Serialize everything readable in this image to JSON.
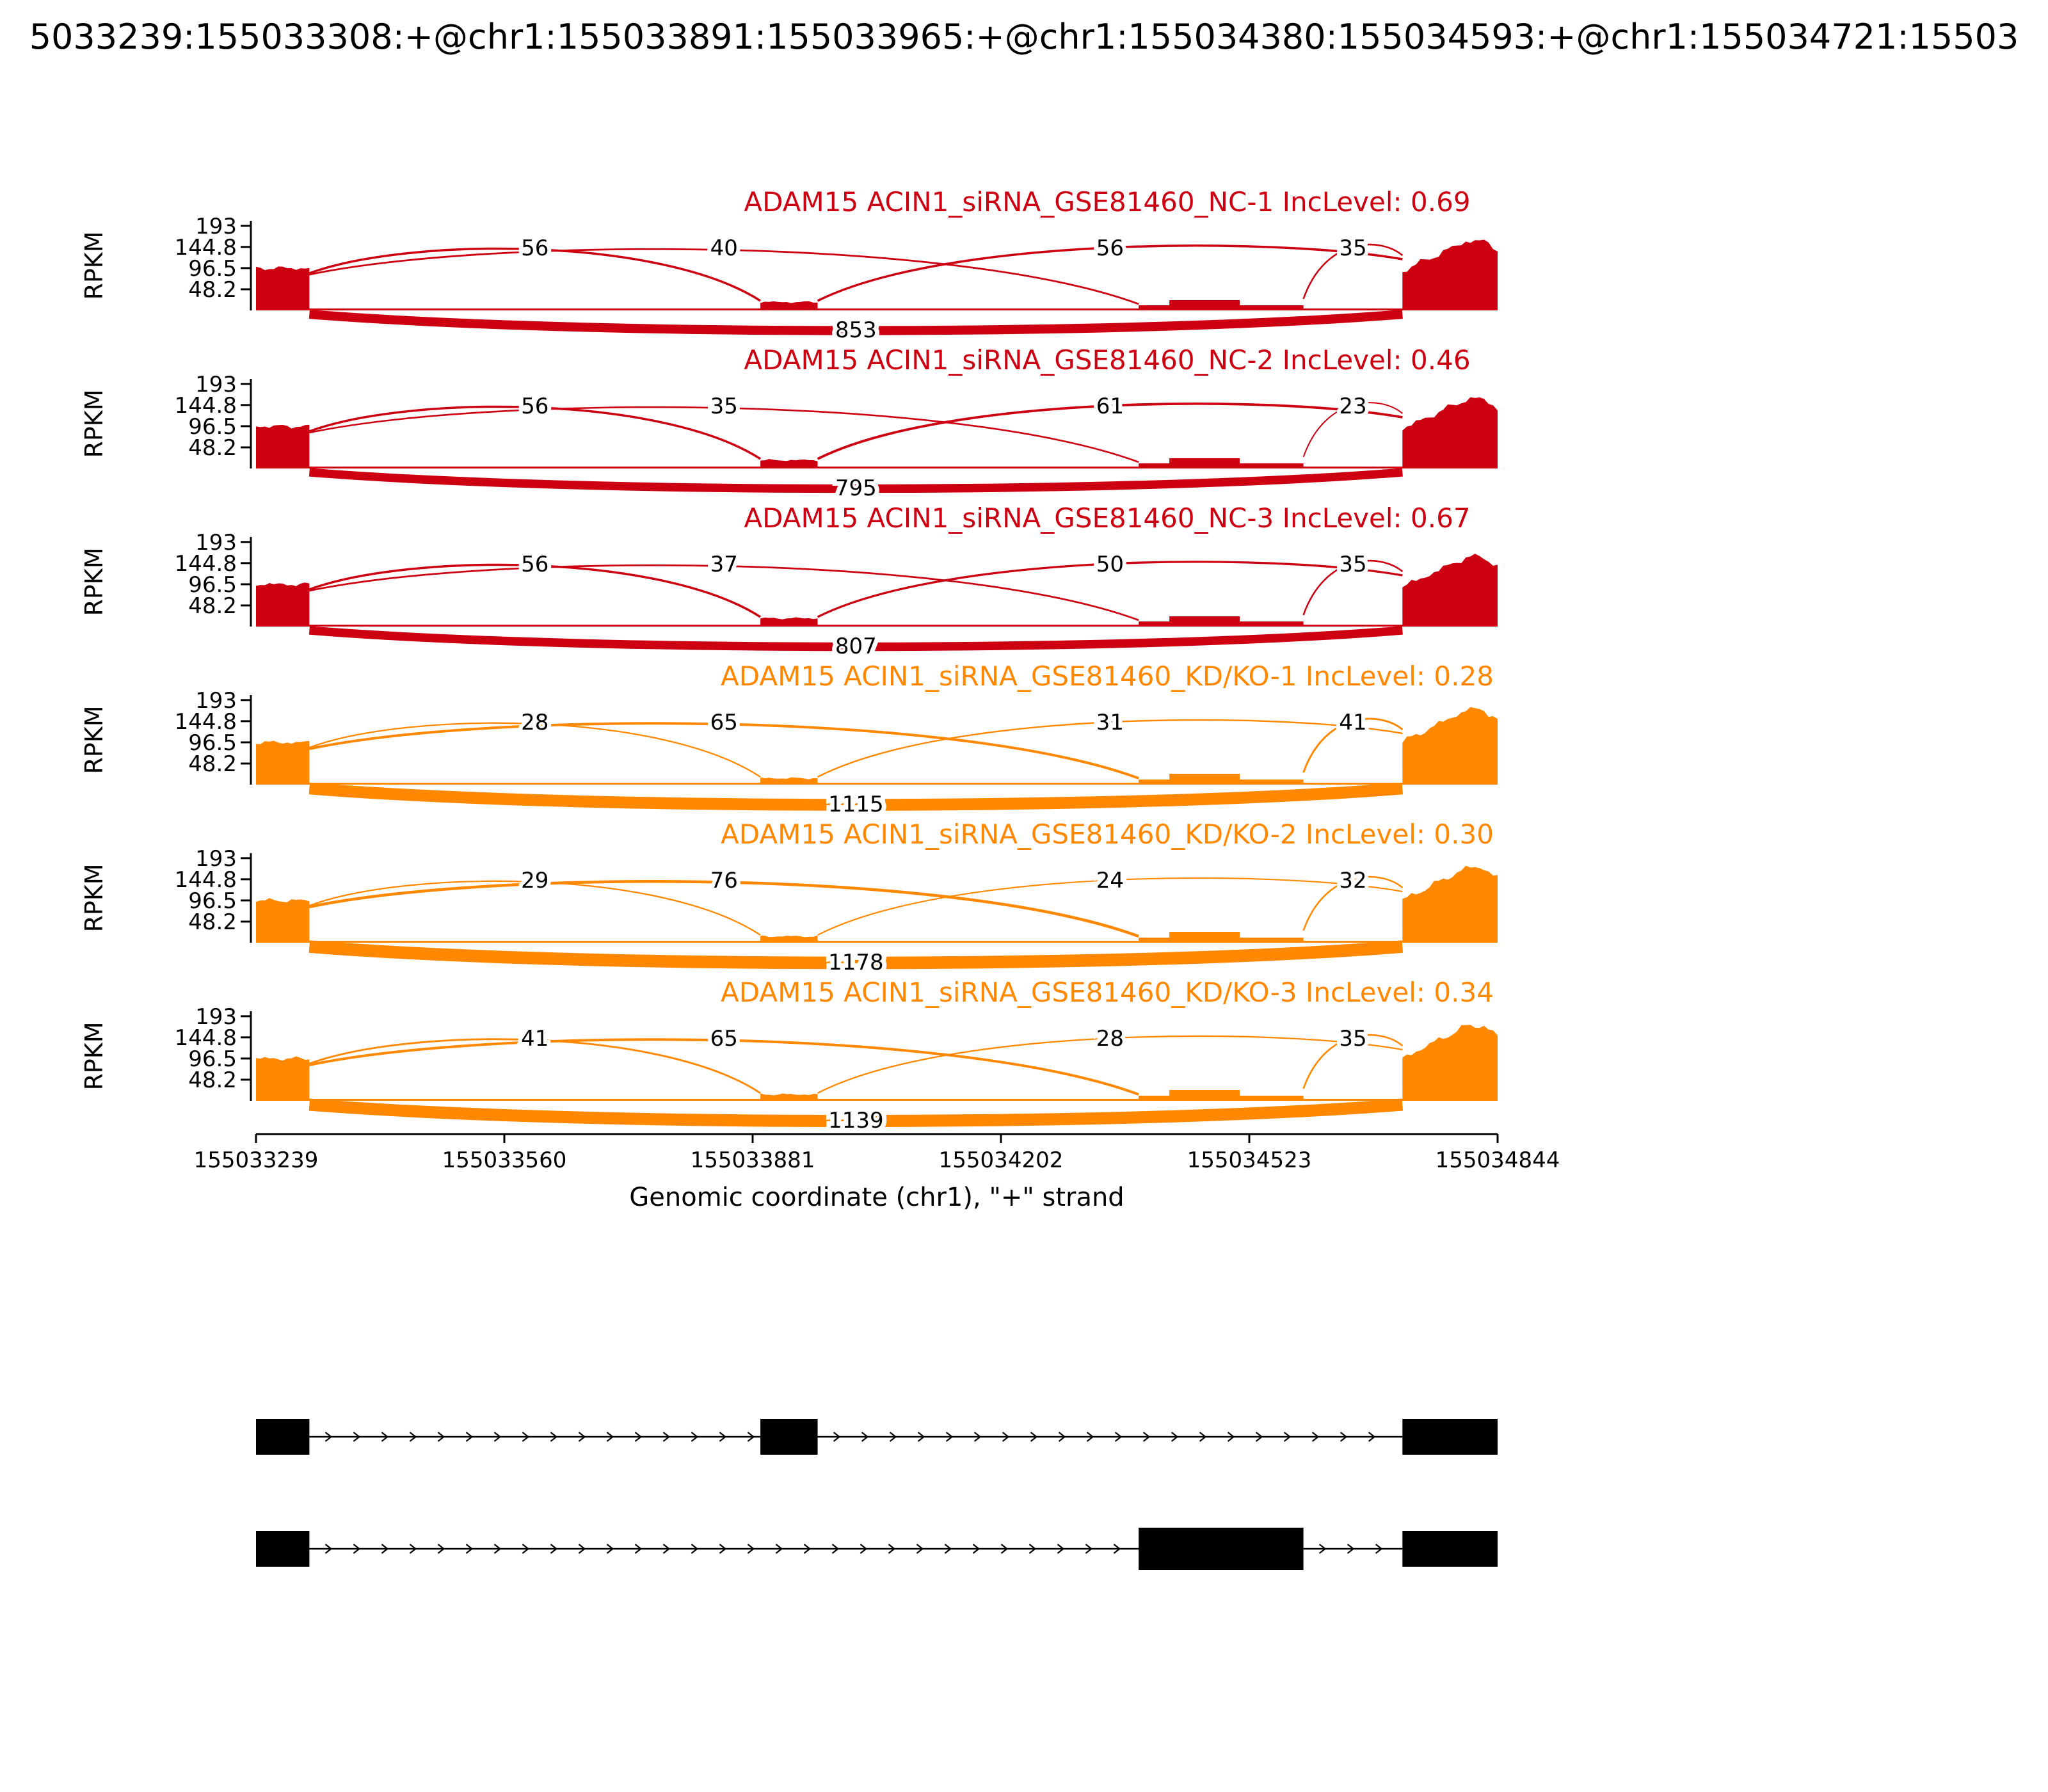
{
  "header": {
    "title": "5033239:155033308:+@chr1:155033891:155033965:+@chr1:155034380:155034593:+@chr1:155034721:15503"
  },
  "colors": {
    "nc": "#CC0011",
    "kd": "#FF8800",
    "axis": "#000000",
    "transcript": "#000000"
  },
  "chart_data": {
    "type": "sashimi",
    "title": "",
    "x_axis": {
      "label": "Genomic coordinate (chr1), \"+\" strand",
      "ticks": [
        155033239,
        155033560,
        155033881,
        155034202,
        155034523,
        155034844
      ],
      "range": [
        155033239,
        155034844
      ]
    },
    "y_axis": {
      "label": "RPKM",
      "ticks": [
        193,
        144.8,
        96.5,
        48.2
      ],
      "tick_labels": [
        "193",
        "144.8",
        "96.5",
        "48.2"
      ]
    },
    "exons_bp": {
      "e1": [
        155033239,
        155033308
      ],
      "e2": [
        155033891,
        155033965
      ],
      "e3": [
        155034380,
        155034593
      ],
      "e4": [
        155034721,
        155034844
      ]
    },
    "junctions_bp": [
      [
        155033308,
        155033891
      ],
      [
        155033308,
        155034380
      ],
      [
        155033965,
        155034721
      ],
      [
        155034593,
        155034721
      ]
    ],
    "skip_junction_bp": [
      155033308,
      155034721
    ],
    "coverage_rpkm": {
      "exon1": 97,
      "exon2": 19,
      "exon3": 23,
      "exon4_peak": 170
    },
    "tracks": [
      {
        "label": "ADAM15 ACIN1_siRNA_GSE81460_NC-1 IncLevel: 0.69",
        "group": "nc",
        "inc_level": "0.69",
        "junction_counts": [
          56,
          40,
          56,
          35
        ],
        "skip_count": 853
      },
      {
        "label": "ADAM15 ACIN1_siRNA_GSE81460_NC-2 IncLevel: 0.46",
        "group": "nc",
        "inc_level": "0.46",
        "junction_counts": [
          56,
          35,
          61,
          23
        ],
        "skip_count": 795
      },
      {
        "label": "ADAM15 ACIN1_siRNA_GSE81460_NC-3 IncLevel: 0.67",
        "group": "nc",
        "inc_level": "0.67",
        "junction_counts": [
          56,
          37,
          50,
          35
        ],
        "skip_count": 807
      },
      {
        "label": "ADAM15 ACIN1_siRNA_GSE81460_KD/KO-1 IncLevel: 0.28",
        "group": "kd",
        "inc_level": "0.28",
        "junction_counts": [
          28,
          65,
          31,
          41
        ],
        "skip_count": 1115
      },
      {
        "label": "ADAM15 ACIN1_siRNA_GSE81460_KD/KO-2 IncLevel: 0.30",
        "group": "kd",
        "inc_level": "0.30",
        "junction_counts": [
          29,
          76,
          24,
          32
        ],
        "skip_count": 1178
      },
      {
        "label": "ADAM15 ACIN1_siRNA_GSE81460_KD/KO-3 IncLevel: 0.34",
        "group": "kd",
        "inc_level": "0.34",
        "junction_counts": [
          41,
          65,
          28,
          35
        ],
        "skip_count": 1139
      }
    ],
    "transcripts": [
      {
        "exons": [
          [
            155033239,
            155033308
          ],
          [
            155033891,
            155033965
          ],
          [
            155034721,
            155034844
          ]
        ]
      },
      {
        "exons": [
          [
            155033239,
            155033308
          ],
          [
            155034380,
            155034593
          ],
          [
            155034721,
            155034844
          ]
        ]
      }
    ]
  }
}
